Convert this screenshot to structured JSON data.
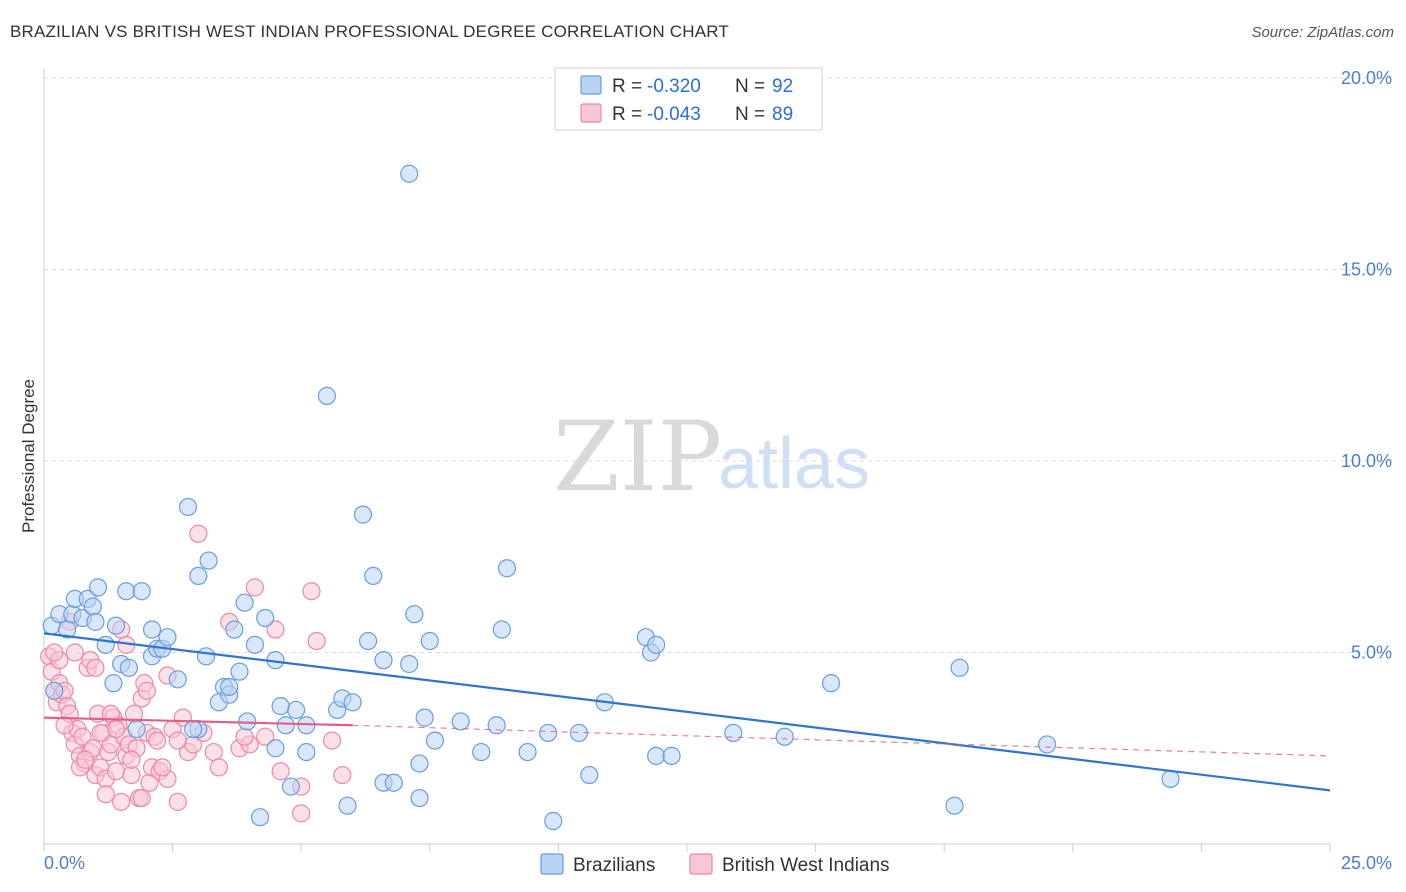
{
  "header": {
    "title": "BRAZILIAN VS BRITISH WEST INDIAN PROFESSIONAL DEGREE CORRELATION CHART",
    "source": "Source: ZipAtlas.com"
  },
  "watermark": {
    "zip": "ZIP",
    "atlas": "atlas"
  },
  "legend": {
    "r_label": "R =",
    "n_label": "N =",
    "rows": [
      {
        "series": "Brazilians",
        "r": "-0.320",
        "n": "92",
        "fill": "#b9d3f5",
        "stroke": "#6a9ce0"
      },
      {
        "series": "British West Indians",
        "r": "-0.043",
        "n": "89",
        "fill": "#f9c6d6",
        "stroke": "#e88aa8"
      }
    ]
  },
  "chart_data": {
    "type": "scatter",
    "title": "BRAZILIAN VS BRITISH WEST INDIAN PROFESSIONAL DEGREE CORRELATION CHART",
    "xlabel": "",
    "ylabel": "Professional Degree",
    "xlim": [
      0,
      25
    ],
    "ylim": [
      0,
      20
    ],
    "x_tick_labels": [
      "0.0%",
      "25.0%"
    ],
    "y_ticks": [
      5,
      10,
      15,
      20
    ],
    "y_tick_labels": [
      "5.0%",
      "10.0%",
      "15.0%",
      "20.0%"
    ],
    "grid": true,
    "series": [
      {
        "name": "Brazilians",
        "color": "#6a9ce0",
        "fill": "#b9d3f5",
        "trend": {
          "x": [
            0,
            25
          ],
          "y": [
            5.5,
            1.4
          ],
          "style": "solid",
          "color": "#2f74d0"
        },
        "points": [
          [
            0.15,
            5.7
          ],
          [
            0.3,
            6.0
          ],
          [
            0.45,
            5.6
          ],
          [
            0.55,
            6.0
          ],
          [
            0.6,
            6.4
          ],
          [
            0.75,
            5.9
          ],
          [
            0.85,
            6.4
          ],
          [
            0.95,
            6.2
          ],
          [
            1.05,
            6.7
          ],
          [
            1.2,
            5.2
          ],
          [
            1.4,
            5.7
          ],
          [
            1.5,
            4.7
          ],
          [
            1.65,
            4.6
          ],
          [
            1.35,
            4.2
          ],
          [
            1.6,
            6.6
          ],
          [
            1.9,
            6.6
          ],
          [
            2.1,
            5.6
          ],
          [
            2.1,
            4.9
          ],
          [
            2.2,
            5.1
          ],
          [
            2.3,
            5.1
          ],
          [
            2.4,
            5.4
          ],
          [
            2.6,
            4.3
          ],
          [
            2.8,
            8.8
          ],
          [
            3.0,
            7.0
          ],
          [
            3.0,
            3.0
          ],
          [
            3.15,
            4.9
          ],
          [
            3.2,
            7.4
          ],
          [
            3.4,
            3.7
          ],
          [
            3.5,
            4.1
          ],
          [
            3.6,
            3.9
          ],
          [
            3.7,
            5.6
          ],
          [
            3.8,
            4.5
          ],
          [
            3.9,
            6.3
          ],
          [
            3.95,
            3.2
          ],
          [
            4.1,
            5.2
          ],
          [
            4.3,
            5.9
          ],
          [
            4.5,
            2.5
          ],
          [
            4.5,
            4.8
          ],
          [
            4.8,
            1.5
          ],
          [
            4.7,
            3.1
          ],
          [
            4.9,
            3.5
          ],
          [
            5.1,
            2.4
          ],
          [
            5.1,
            3.1
          ],
          [
            5.5,
            11.7
          ],
          [
            5.7,
            3.5
          ],
          [
            5.8,
            3.8
          ],
          [
            5.9,
            1.0
          ],
          [
            6.0,
            3.7
          ],
          [
            6.2,
            8.6
          ],
          [
            6.3,
            5.3
          ],
          [
            6.4,
            7.0
          ],
          [
            6.6,
            1.6
          ],
          [
            6.6,
            4.8
          ],
          [
            6.8,
            1.6
          ],
          [
            7.1,
            4.7
          ],
          [
            7.2,
            6.0
          ],
          [
            7.3,
            1.2
          ],
          [
            7.4,
            3.3
          ],
          [
            7.5,
            5.3
          ],
          [
            7.6,
            2.7
          ],
          [
            7.1,
            17.5
          ],
          [
            8.1,
            3.2
          ],
          [
            8.5,
            2.4
          ],
          [
            8.8,
            3.1
          ],
          [
            8.9,
            5.6
          ],
          [
            9.0,
            7.2
          ],
          [
            9.4,
            2.4
          ],
          [
            9.8,
            2.9
          ],
          [
            9.9,
            0.6
          ],
          [
            10.4,
            2.9
          ],
          [
            10.6,
            1.8
          ],
          [
            10.9,
            3.7
          ],
          [
            11.7,
            5.4
          ],
          [
            11.8,
            5.0
          ],
          [
            11.9,
            5.2
          ],
          [
            11.9,
            2.3
          ],
          [
            12.2,
            2.3
          ],
          [
            13.4,
            2.9
          ],
          [
            14.4,
            2.8
          ],
          [
            15.3,
            4.2
          ],
          [
            17.7,
            1.0
          ],
          [
            17.8,
            4.6
          ],
          [
            19.5,
            2.6
          ],
          [
            21.9,
            1.7
          ],
          [
            4.2,
            0.7
          ],
          [
            7.3,
            2.1
          ],
          [
            4.6,
            3.6
          ],
          [
            2.9,
            3.0
          ],
          [
            0.2,
            4.0
          ],
          [
            1.0,
            5.8
          ],
          [
            1.8,
            3.0
          ],
          [
            3.6,
            4.1
          ]
        ]
      },
      {
        "name": "British West Indians",
        "color": "#e88aa8",
        "fill": "#f9c6d6",
        "trend": {
          "x": [
            0,
            6
          ],
          "y": [
            3.3,
            3.1
          ],
          "style": "solid",
          "color": "#e0608a",
          "dashed_extension": {
            "x": [
              6,
              25
            ],
            "y": [
              3.1,
              2.3
            ]
          }
        },
        "points": [
          [
            0.1,
            4.9
          ],
          [
            0.15,
            4.5
          ],
          [
            0.2,
            4.0
          ],
          [
            0.25,
            3.7
          ],
          [
            0.3,
            4.2
          ],
          [
            0.35,
            3.9
          ],
          [
            0.4,
            4.0
          ],
          [
            0.45,
            3.6
          ],
          [
            0.5,
            3.4
          ],
          [
            0.55,
            2.9
          ],
          [
            0.6,
            2.6
          ],
          [
            0.65,
            3.0
          ],
          [
            0.7,
            2.3
          ],
          [
            0.75,
            2.8
          ],
          [
            0.8,
            2.1
          ],
          [
            0.85,
            4.6
          ],
          [
            0.9,
            2.4
          ],
          [
            0.95,
            2.5
          ],
          [
            1.0,
            1.8
          ],
          [
            1.05,
            3.4
          ],
          [
            1.1,
            2.0
          ],
          [
            1.15,
            2.9
          ],
          [
            1.2,
            1.7
          ],
          [
            1.25,
            2.4
          ],
          [
            1.3,
            2.6
          ],
          [
            1.35,
            3.3
          ],
          [
            1.4,
            1.9
          ],
          [
            1.45,
            3.1
          ],
          [
            1.5,
            1.1
          ],
          [
            1.55,
            2.8
          ],
          [
            1.6,
            2.3
          ],
          [
            1.65,
            2.6
          ],
          [
            1.7,
            1.8
          ],
          [
            1.75,
            3.4
          ],
          [
            1.8,
            2.5
          ],
          [
            1.85,
            1.2
          ],
          [
            1.9,
            3.8
          ],
          [
            1.95,
            4.2
          ],
          [
            2.0,
            2.9
          ],
          [
            2.05,
            1.6
          ],
          [
            2.1,
            2.0
          ],
          [
            2.15,
            2.8
          ],
          [
            2.2,
            2.7
          ],
          [
            2.25,
            1.9
          ],
          [
            2.4,
            1.7
          ],
          [
            2.5,
            3.0
          ],
          [
            2.6,
            1.1
          ],
          [
            2.7,
            3.3
          ],
          [
            2.8,
            2.4
          ],
          [
            2.9,
            2.6
          ],
          [
            3.0,
            8.1
          ],
          [
            3.1,
            2.9
          ],
          [
            3.3,
            2.4
          ],
          [
            3.4,
            2.0
          ],
          [
            3.6,
            5.8
          ],
          [
            3.8,
            2.5
          ],
          [
            4.0,
            2.6
          ],
          [
            4.1,
            6.7
          ],
          [
            4.3,
            2.8
          ],
          [
            4.5,
            5.6
          ],
          [
            4.6,
            1.9
          ],
          [
            5.0,
            1.5
          ],
          [
            5.2,
            6.6
          ],
          [
            5.3,
            5.3
          ],
          [
            5.6,
            2.7
          ],
          [
            5.8,
            1.8
          ],
          [
            0.4,
            3.1
          ],
          [
            0.6,
            5.0
          ],
          [
            0.9,
            4.8
          ],
          [
            1.3,
            3.4
          ],
          [
            1.6,
            5.2
          ],
          [
            0.3,
            4.8
          ],
          [
            0.5,
            5.8
          ],
          [
            0.7,
            2.0
          ],
          [
            1.0,
            4.6
          ],
          [
            1.2,
            1.3
          ],
          [
            1.4,
            3.0
          ],
          [
            1.7,
            2.2
          ],
          [
            2.0,
            4.0
          ],
          [
            2.3,
            2.0
          ],
          [
            2.6,
            2.7
          ],
          [
            1.1,
            2.9
          ],
          [
            0.2,
            5.0
          ],
          [
            0.8,
            2.2
          ],
          [
            1.5,
            5.6
          ],
          [
            1.9,
            1.2
          ],
          [
            2.4,
            4.4
          ],
          [
            3.9,
            2.8
          ],
          [
            5.0,
            0.8
          ]
        ]
      }
    ]
  },
  "bottom_legend": {
    "items": [
      "Brazilians",
      "British West Indians"
    ]
  }
}
